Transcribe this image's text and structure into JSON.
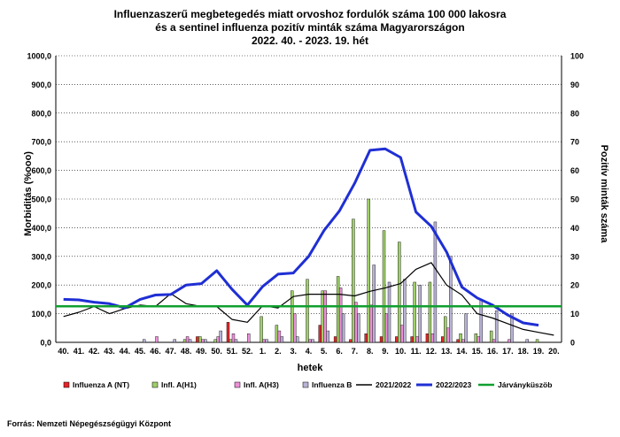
{
  "title_lines": [
    "Influenzaszerű megbetegedés miatt orvoshoz fordulók száma 100 000 lakosra",
    "és a sentinel influenza pozitív minták száma Magyarországon",
    "2022. 40. - 2023. 19. hét"
  ],
  "ylabel_left": "Morbiditás (%ooo)",
  "ylabel_right": "Pozitív minták száma",
  "xlabel": "hetek",
  "source": "Forrás: Nemzeti Népegészségügyi Központ",
  "colors": {
    "flu_a_nt": "#e3262b",
    "h1": "#9fcf6a",
    "h3": "#ee8fd9",
    "flu_b": "#b9b3d6",
    "line_2122": "#000000",
    "line_2223": "#1f2fd4",
    "threshold": "#10a030"
  },
  "chart_data": {
    "type": "bar",
    "categories": [
      "40.",
      "41.",
      "42.",
      "43.",
      "44.",
      "45.",
      "46.",
      "47.",
      "48.",
      "49.",
      "50.",
      "51.",
      "52.",
      "1.",
      "2.",
      "3.",
      "4.",
      "5.",
      "6.",
      "7.",
      "8.",
      "9.",
      "10.",
      "11.",
      "12.",
      "13.",
      "14.",
      "15.",
      "16.",
      "17.",
      "18.",
      "19.",
      "20."
    ],
    "ylim_left": [
      0,
      1000
    ],
    "ylim_right": [
      0,
      100
    ],
    "left_ticks": [
      "0,0",
      "100,0",
      "200,0",
      "300,0",
      "400,0",
      "500,0",
      "600,0",
      "700,0",
      "800,0",
      "900,0",
      "1000,0"
    ],
    "right_ticks": [
      "0",
      "10",
      "20",
      "30",
      "40",
      "50",
      "60",
      "70",
      "80",
      "90",
      "100"
    ],
    "grid": true,
    "legend_position": "bottom",
    "bar_series": [
      {
        "name": "Influenza A (NT)",
        "axis": "right",
        "values": [
          0,
          0,
          0,
          0,
          0,
          0,
          0,
          0,
          0,
          2,
          0,
          7,
          0,
          0,
          0,
          0,
          0,
          6,
          2,
          1,
          3,
          2,
          2,
          2,
          3,
          2,
          1,
          0,
          0,
          0,
          0,
          0,
          0
        ]
      },
      {
        "name": "Infl. A(H1)",
        "axis": "right",
        "values": [
          0,
          0,
          0,
          0,
          0,
          0,
          0,
          0,
          1,
          2,
          1,
          1,
          0,
          9,
          6,
          18,
          22,
          18,
          23,
          43,
          50,
          39,
          35,
          21,
          21,
          9,
          3,
          3,
          4,
          0,
          0,
          1,
          0
        ]
      },
      {
        "name": "Infl. A(H3)",
        "axis": "right",
        "values": [
          0,
          0,
          0,
          0,
          0,
          0,
          2,
          0,
          2,
          1,
          2,
          3,
          3,
          1,
          4,
          10,
          1,
          18,
          19,
          14,
          13,
          10,
          6,
          2,
          3,
          5,
          1,
          2,
          1,
          1,
          0,
          0,
          0
        ]
      },
      {
        "name": "Influenza B",
        "axis": "right",
        "values": [
          0,
          0,
          0,
          0,
          0,
          1,
          0,
          1,
          1,
          1,
          4,
          1,
          0,
          1,
          2,
          2,
          1,
          4,
          10,
          10,
          27,
          21,
          22,
          20,
          42,
          30,
          10,
          15,
          11,
          10,
          1,
          0,
          0
        ]
      }
    ],
    "line_series": [
      {
        "name": "2021/2022",
        "axis": "left",
        "values": [
          90,
          105,
          125,
          100,
          118,
          130,
          125,
          170,
          135,
          125,
          125,
          80,
          70,
          128,
          120,
          160,
          168,
          168,
          168,
          162,
          178,
          190,
          205,
          255,
          278,
          200,
          165,
          100,
          85,
          65,
          45,
          35,
          25
        ]
      },
      {
        "name": "2022/2023",
        "axis": "left",
        "values": [
          150,
          148,
          140,
          135,
          120,
          150,
          165,
          167,
          200,
          205,
          250,
          185,
          130,
          195,
          238,
          242,
          300,
          390,
          458,
          555,
          670,
          675,
          645,
          455,
          405,
          315,
          193,
          155,
          130,
          95,
          68,
          60,
          null
        ]
      },
      {
        "name": "Járványküszöb",
        "axis": "left",
        "values": [
          126,
          126,
          126,
          126,
          126,
          126,
          126,
          126,
          126,
          126,
          126,
          126,
          126,
          126,
          126,
          126,
          126,
          126,
          126,
          126,
          126,
          126,
          126,
          126,
          126,
          126,
          126,
          126,
          126,
          126,
          126,
          126,
          126
        ]
      }
    ]
  }
}
